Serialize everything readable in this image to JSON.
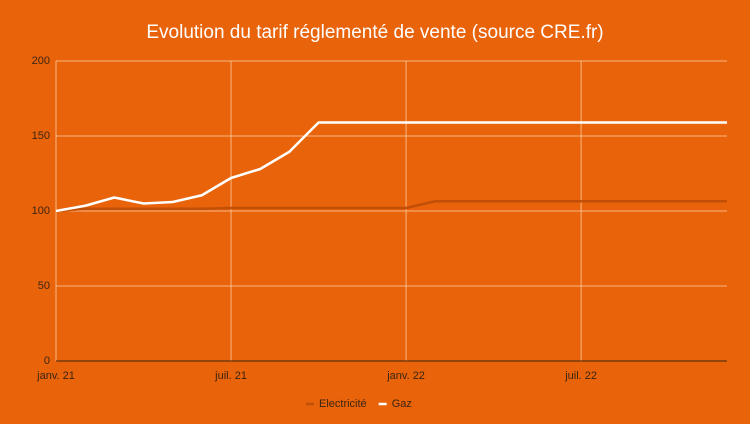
{
  "chart_data": {
    "type": "line",
    "title": "Evolution du tarif réglementé de vente (source CRE.fr)",
    "categories": [
      "janv. 21",
      null,
      null,
      null,
      null,
      null,
      "juil. 21",
      null,
      null,
      null,
      null,
      null,
      "janv. 22",
      null,
      null,
      null,
      null,
      null,
      "juil. 22",
      null,
      null,
      null,
      null,
      null
    ],
    "series": [
      {
        "name": "Electricité",
        "color": "#c24f08",
        "values": [
          100,
          101.5,
          101.5,
          101.5,
          101.5,
          101.5,
          102,
          102,
          102,
          102,
          102,
          102,
          102,
          106.5,
          106.5,
          106.5,
          106.5,
          106.5,
          106.5,
          106.5,
          106.5,
          106.5,
          106.5,
          106.5
        ]
      },
      {
        "name": "Gaz",
        "color": "#ffffff",
        "values": [
          100,
          103.5,
          109,
          105,
          106,
          110.5,
          122,
          128,
          139.5,
          159,
          159,
          159,
          159,
          159,
          159,
          159,
          159,
          159,
          159,
          159,
          159,
          159,
          159,
          159
        ]
      }
    ],
    "ylim": [
      0,
      200
    ],
    "yticks": [
      0,
      50,
      100,
      150,
      200
    ],
    "grid": true,
    "legend": "bottom"
  }
}
